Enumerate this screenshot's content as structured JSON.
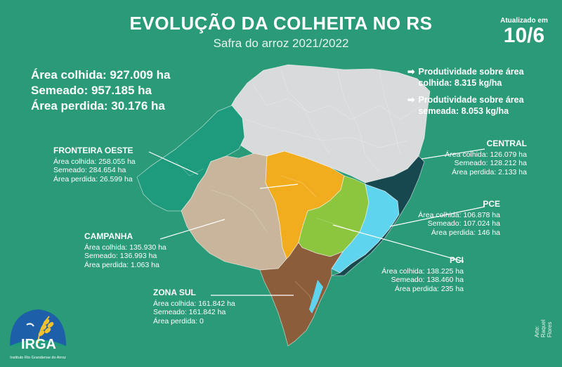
{
  "header": {
    "title": "EVOLUÇÃO DA COLHEITA NO RS",
    "subtitle": "Safra do arroz 2021/2022"
  },
  "updated": {
    "label": "Atualizado em",
    "date": "10/6"
  },
  "totals": {
    "harvested": "Área colhida: 927.009 ha",
    "sown": "Semeado: 957.185 ha",
    "lost": "Área perdida: 30.176 ha"
  },
  "productivity": {
    "harvested": "Produtividade sobre área colhida: 8.315 kg/ha",
    "sown": "Produtividade sobre área semeada: 8.053 kg/ha"
  },
  "regions": {
    "fronteira_oeste": {
      "name": "FRONTEIRA OESTE",
      "harvested": "Área colhida: 258.055 ha",
      "sown": "Semeado: 284.654 ha",
      "lost": "Área perdida: 26.599 ha",
      "color": "#1e9a7c"
    },
    "campanha": {
      "name": "CAMPANHA",
      "harvested": "Área colhida: 135.930 ha",
      "sown": "Semeado: 136.993 ha",
      "lost": "Área perdida: 1.063 ha",
      "color": "#c9b59c"
    },
    "zona_sul": {
      "name": "ZONA SUL",
      "harvested": "Área colhida: 161.842 ha",
      "sown": "Semeado: 161.842 ha",
      "lost": "Área perdida: 0",
      "color": "#8c5d3b"
    },
    "central": {
      "name": "CENTRAL",
      "harvested": "Área colhida: 126.079 ha",
      "sown": "Semeado: 128.212 ha",
      "lost": "Área perdida: 2.133 ha",
      "color": "#f2ad1f"
    },
    "pce": {
      "name": "PCE",
      "harvested": "Área colhida: 106.878 ha",
      "sown": "Semeado: 107.024 ha",
      "lost": "Área perdida: 146 ha",
      "color": "#8cc63f"
    },
    "pci": {
      "name": "PCI",
      "harvested": "Área colhida: 138.225 ha",
      "sown": "Semeado: 138.460 ha",
      "lost": "Área perdida: 235 ha",
      "color": "#5fd4ef"
    },
    "litoral_norte": {
      "color": "#17484f"
    },
    "non_rice": {
      "color": "#d9dadb"
    }
  },
  "logo": {
    "name": "IRGA",
    "subtitle": "Instituto Rio Grandense do Arroz",
    "icon": "rice-grain-logo-icon"
  },
  "credit": "Arte: Raquel Flores"
}
